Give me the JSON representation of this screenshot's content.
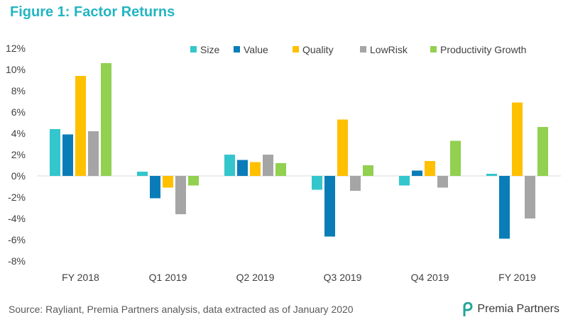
{
  "figure": {
    "title": "Figure 1: Factor Returns",
    "source": "Source: Rayliant, Premia Partners analysis, data extracted as of January 2020",
    "brand": "Premia Partners"
  },
  "chart_data": {
    "type": "bar",
    "title": "",
    "xlabel": "",
    "ylabel": "",
    "categories": [
      "FY 2018",
      "Q1 2019",
      "Q2 2019",
      "Q3 2019",
      "Q4 2019",
      "FY 2019"
    ],
    "ylim": [
      -8,
      12
    ],
    "yticks": [
      -8,
      -6,
      -4,
      -2,
      0,
      2,
      4,
      6,
      8,
      10,
      12
    ],
    "ytick_suffix": "%",
    "grid": false,
    "legend_position": "top-right",
    "series": [
      {
        "name": "Size",
        "color": "#33c6cc",
        "values": [
          4.4,
          0.4,
          2.0,
          -1.3,
          -0.9,
          0.2
        ]
      },
      {
        "name": "Value",
        "color": "#0a7db8",
        "values": [
          3.9,
          -2.1,
          1.5,
          -5.7,
          0.5,
          -5.9
        ]
      },
      {
        "name": "Quality",
        "color": "#ffc000",
        "values": [
          9.4,
          -1.1,
          1.3,
          5.3,
          1.4,
          6.9
        ]
      },
      {
        "name": "LowRisk",
        "color": "#a5a5a5",
        "values": [
          4.2,
          -3.6,
          2.0,
          -1.4,
          -1.1,
          -4.0
        ]
      },
      {
        "name": "Productivity Growth",
        "color": "#92d050",
        "values": [
          10.6,
          -0.9,
          1.2,
          1.0,
          3.3,
          4.6
        ]
      }
    ]
  }
}
